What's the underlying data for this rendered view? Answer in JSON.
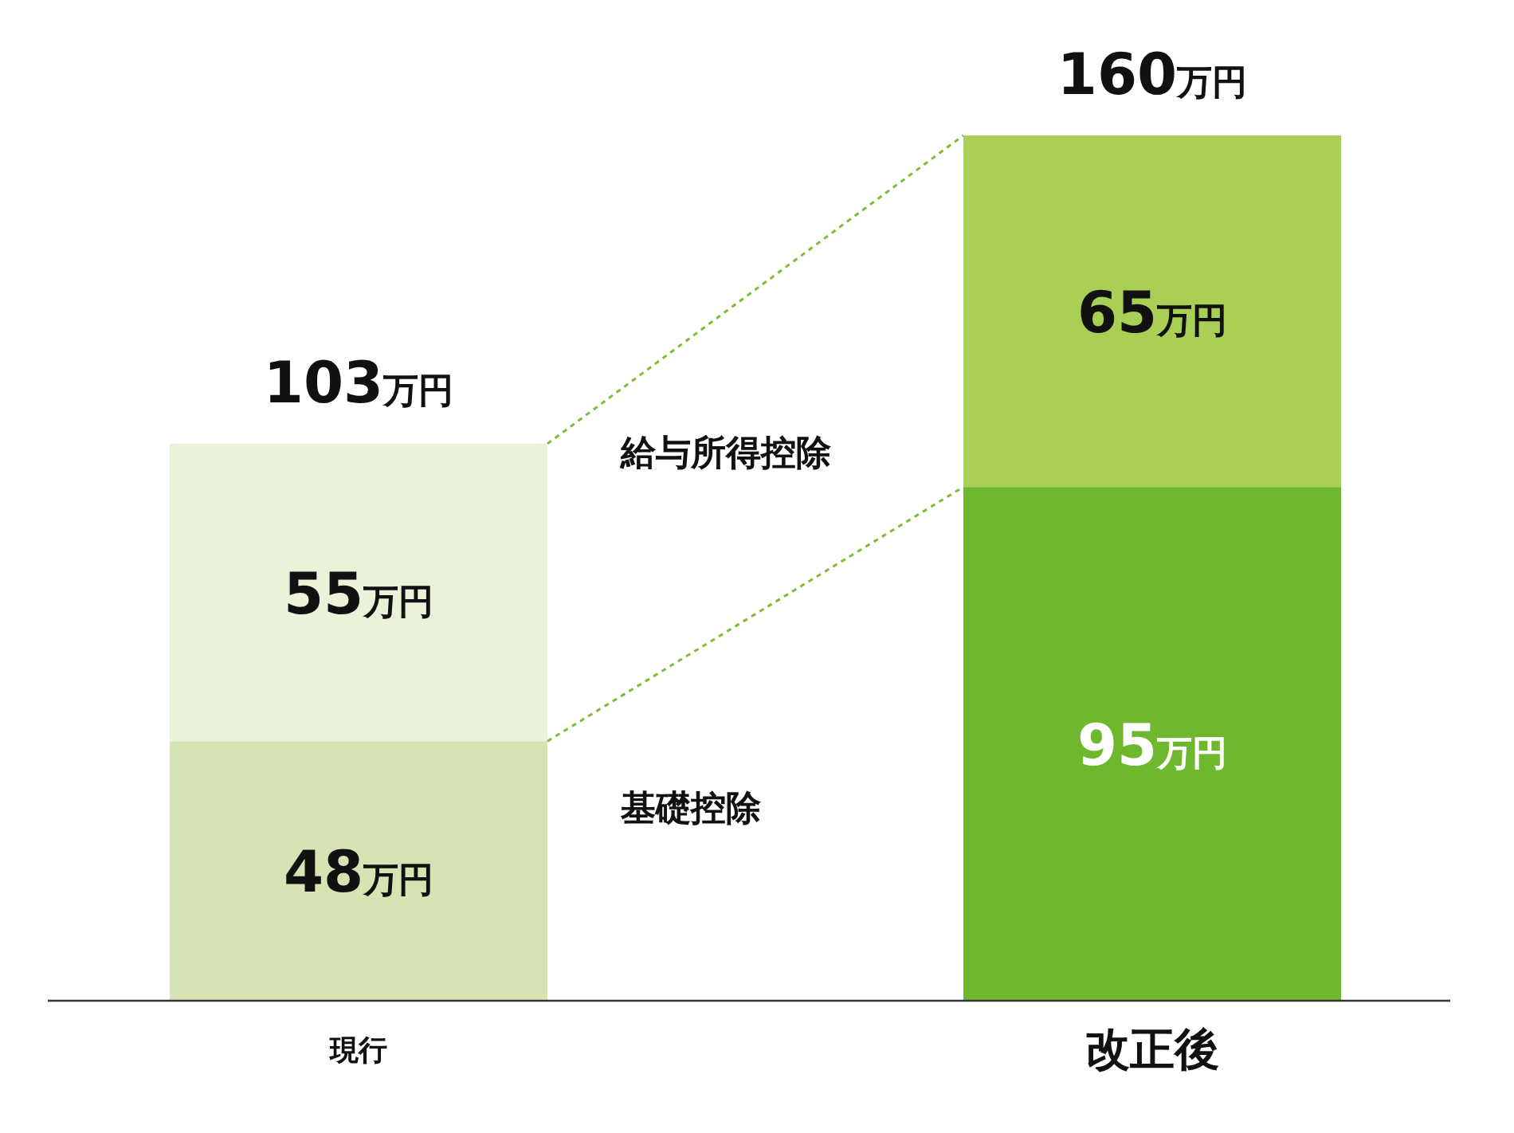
{
  "chart_data": {
    "type": "bar",
    "stacked": true,
    "categories": [
      "現行",
      "改正後"
    ],
    "series": [
      {
        "name": "基礎控除",
        "colors": [
          "#d6e4b4",
          "#6fb82e"
        ],
        "values": [
          48,
          95
        ],
        "value_labels": [
          "48万円",
          "95万円"
        ]
      },
      {
        "name": "給与所得控除",
        "colors": [
          "#eaf2da",
          "#a9cf55"
        ],
        "values": [
          55,
          65
        ],
        "value_labels": [
          "55万円",
          "65万円"
        ]
      }
    ],
    "totals": [
      "103万円",
      "160万円"
    ]
  }
}
